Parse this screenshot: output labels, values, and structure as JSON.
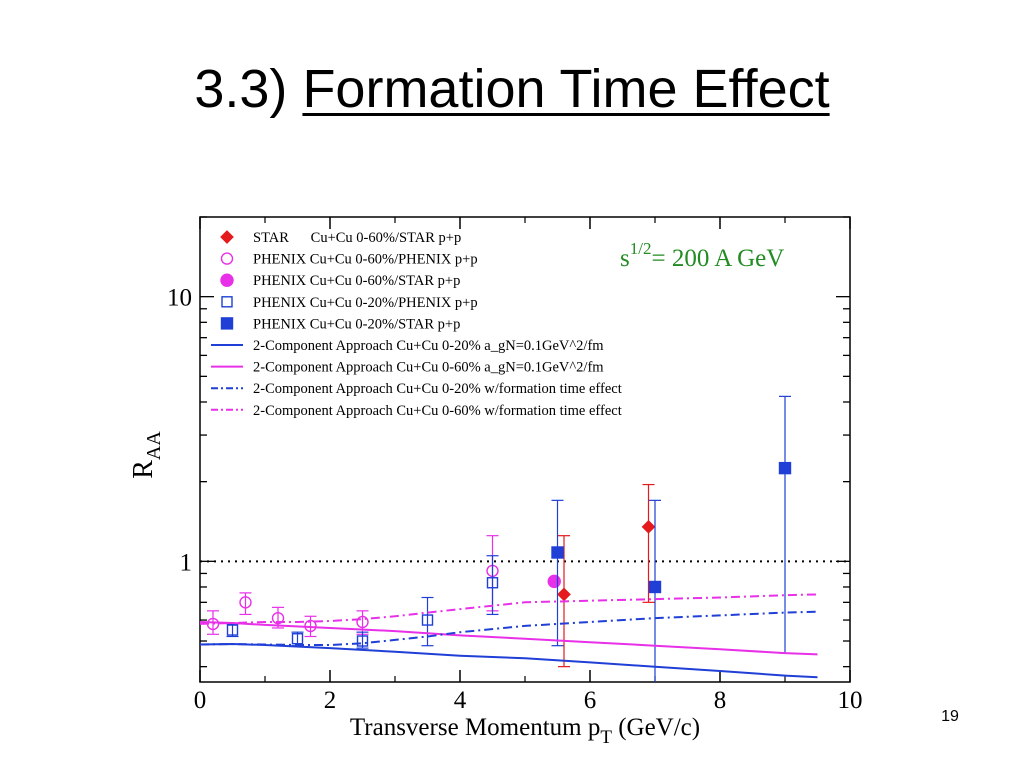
{
  "slide": {
    "title_prefix": "3.3)",
    "title_topic": "Formation Time Effect",
    "page_number": "19"
  },
  "chart_data": {
    "type": "scatter",
    "annotation": {
      "base": "s",
      "sup": "1/2",
      "rest": "= 200 A GeV",
      "color": "#228B22"
    },
    "xlabel": "Transverse Momentum p",
    "xlabel_sub": "T",
    "xlabel_unit": "(GeV/c)",
    "ylabel": "R",
    "ylabel_sub": "AA",
    "xlim": [
      0,
      10
    ],
    "ylim": [
      0.35,
      20
    ],
    "yscale": "log",
    "x_ticks": [
      "0",
      "2",
      "4",
      "6",
      "8",
      "10"
    ],
    "y_ticks": [
      {
        "value": 1,
        "label": "1"
      },
      {
        "value": 10,
        "label": "10"
      }
    ],
    "reference_line": {
      "y": 1,
      "style": "dotted"
    },
    "grid": false,
    "legend_position": "top-left",
    "series": [
      {
        "name": "STAR      Cu+Cu 0-60%/STAR p+p",
        "marker": "diamond",
        "filled": true,
        "color": "#e41a1c",
        "x": [
          5.6,
          6.9
        ],
        "y": [
          0.75,
          1.35
        ],
        "err_low": [
          0.4,
          0.7
        ],
        "err_high": [
          1.25,
          1.95
        ]
      },
      {
        "name": "PHENIX Cu+Cu 0-60%/PHENIX p+p",
        "marker": "circle",
        "filled": false,
        "color": "#e830e8",
        "x": [
          0.2,
          0.7,
          1.2,
          1.7,
          2.5,
          4.5
        ],
        "y": [
          0.58,
          0.7,
          0.61,
          0.57,
          0.59,
          0.92
        ],
        "err_low": [
          0.53,
          0.63,
          0.56,
          0.52,
          0.53,
          0.65
        ],
        "err_high": [
          0.65,
          0.76,
          0.67,
          0.62,
          0.65,
          1.25
        ]
      },
      {
        "name": "PHENIX Cu+Cu 0-60%/STAR p+p",
        "marker": "circle",
        "filled": true,
        "color": "#e830e8",
        "x": [
          5.45
        ],
        "y": [
          0.84
        ],
        "err_low": [
          0.84
        ],
        "err_high": [
          0.84
        ]
      },
      {
        "name": "PHENIX Cu+Cu 0-20%/PHENIX p+p",
        "marker": "square",
        "filled": false,
        "color": "#1f3fd6",
        "x": [
          0.5,
          1.5,
          2.5,
          3.5,
          4.5
        ],
        "y": [
          0.55,
          0.51,
          0.5,
          0.6,
          0.83
        ],
        "err_low": [
          0.52,
          0.48,
          0.47,
          0.48,
          0.63
        ],
        "err_high": [
          0.58,
          0.54,
          0.54,
          0.73,
          1.05
        ]
      },
      {
        "name": "PHENIX Cu+Cu 0-20%/STAR p+p",
        "marker": "square",
        "filled": true,
        "color": "#1f3fd6",
        "x": [
          5.5,
          7.0,
          9.0
        ],
        "y": [
          1.08,
          0.8,
          2.25
        ],
        "err_low": [
          0.48,
          0.3,
          0.45
        ],
        "err_high": [
          1.7,
          1.7,
          4.2
        ]
      },
      {
        "name": "2-Component Approach Cu+Cu 0-20% a_gN=0.1GeV^2/fm",
        "line": "solid",
        "color": "#1f3fd6",
        "x": [
          0,
          0.5,
          1,
          2,
          3,
          4,
          5,
          6,
          7,
          8,
          9,
          9.5
        ],
        "y": [
          0.485,
          0.487,
          0.483,
          0.47,
          0.455,
          0.44,
          0.43,
          0.415,
          0.4,
          0.385,
          0.37,
          0.365
        ]
      },
      {
        "name": "2-Component Approach Cu+Cu 0-60% a_gN=0.1GeV^2/fm",
        "line": "solid",
        "color": "#e830e8",
        "x": [
          0,
          0.5,
          1,
          2,
          3,
          4,
          5,
          6,
          7,
          8,
          9,
          9.5
        ],
        "y": [
          0.59,
          0.585,
          0.575,
          0.56,
          0.545,
          0.525,
          0.51,
          0.495,
          0.48,
          0.465,
          0.45,
          0.445
        ]
      },
      {
        "name": "2-Component Approach Cu+Cu 0-20% w/formation time effect",
        "line": "dashdot",
        "color": "#1f3fd6",
        "x": [
          0,
          0.5,
          1,
          1.5,
          2,
          2.5,
          3,
          3.5,
          4,
          5,
          6,
          7,
          8,
          9,
          9.5
        ],
        "y": [
          0.485,
          0.487,
          0.485,
          0.483,
          0.483,
          0.49,
          0.505,
          0.52,
          0.54,
          0.57,
          0.59,
          0.61,
          0.625,
          0.64,
          0.645
        ]
      },
      {
        "name": "2-Component Approach Cu+Cu 0-60% w/formation time effect",
        "line": "dashdot",
        "color": "#e830e8",
        "x": [
          0,
          0.5,
          1,
          1.5,
          2,
          2.5,
          3,
          3.5,
          4,
          4.5,
          5,
          6,
          7,
          8,
          9,
          9.5
        ],
        "y": [
          0.58,
          0.585,
          0.59,
          0.59,
          0.595,
          0.605,
          0.62,
          0.64,
          0.66,
          0.68,
          0.7,
          0.71,
          0.72,
          0.73,
          0.745,
          0.75
        ]
      }
    ]
  }
}
